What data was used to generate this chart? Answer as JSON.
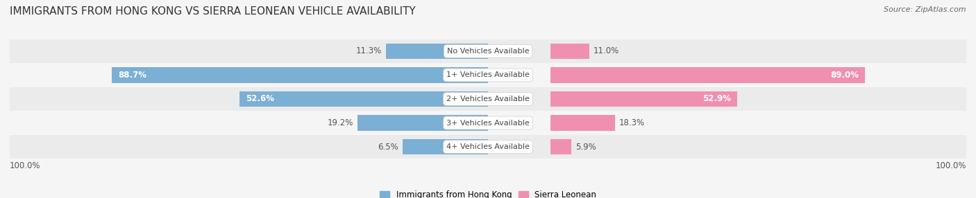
{
  "title": "IMMIGRANTS FROM HONG KONG VS SIERRA LEONEAN VEHICLE AVAILABILITY",
  "source": "Source: ZipAtlas.com",
  "categories": [
    "No Vehicles Available",
    "1+ Vehicles Available",
    "2+ Vehicles Available",
    "3+ Vehicles Available",
    "4+ Vehicles Available"
  ],
  "hong_kong_values": [
    11.3,
    88.7,
    52.6,
    19.2,
    6.5
  ],
  "sierra_leone_values": [
    11.0,
    89.0,
    52.9,
    18.3,
    5.9
  ],
  "hong_kong_color": "#7bafd4",
  "hong_kong_color_dark": "#4a86c8",
  "sierra_leone_color": "#f090b0",
  "sierra_leone_color_dark": "#e8508a",
  "row_bg_colors": [
    "#ebebeb",
    "#f5f5f5"
  ],
  "title_fontsize": 11,
  "source_fontsize": 8,
  "bar_label_fontsize": 8.5,
  "category_fontsize": 8,
  "legend_fontsize": 8.5,
  "x_axis_label_left": "100.0%",
  "x_axis_label_right": "100.0%",
  "max_value": 100.0,
  "background_color": "#f5f5f5",
  "inside_label_threshold": 30
}
